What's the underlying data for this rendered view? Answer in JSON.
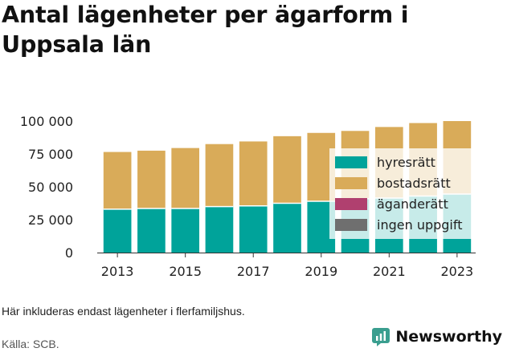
{
  "title": "Antal lägenheter per ägarform i Uppsala län",
  "footnote": "Här inkluderas endast lägenheter i flerfamiljshus.",
  "source": "Källa: SCB.",
  "brand": {
    "name": "Newsworthy",
    "icon": "newsworthy-logo-icon",
    "color": "#3a9e8f"
  },
  "chart_data": {
    "type": "bar",
    "stacked": true,
    "x": [
      2013,
      2014,
      2015,
      2016,
      2017,
      2018,
      2019,
      2020,
      2021,
      2022,
      2023
    ],
    "x_tick_labels": [
      "2013",
      "2015",
      "2017",
      "2019",
      "2021",
      "2023"
    ],
    "y_tick_labels": [
      "0",
      "25 000",
      "50 000",
      "75 000",
      "100 000"
    ],
    "ylim": [
      0,
      100000
    ],
    "series": [
      {
        "name": "hyresrätt",
        "color": "#00a39a",
        "values": [
          33000,
          33500,
          33500,
          35000,
          35500,
          37500,
          39000,
          41000,
          41500,
          43000,
          44500
        ]
      },
      {
        "name": "bostadsrätt",
        "color": "#d9ab59",
        "values": [
          43500,
          44000,
          46000,
          47500,
          49000,
          51000,
          52000,
          51500,
          54000,
          55500,
          55500
        ]
      },
      {
        "name": "äganderätt",
        "color": "#b0406f",
        "values": [
          0,
          0,
          0,
          0,
          0,
          0,
          0,
          0,
          0,
          0,
          0
        ]
      },
      {
        "name": "ingen uppgift",
        "color": "#6f6f6f",
        "values": [
          0,
          0,
          0,
          0,
          0,
          0,
          0,
          0,
          0,
          0,
          0
        ]
      }
    ],
    "legend": "center-right",
    "grid": false
  }
}
